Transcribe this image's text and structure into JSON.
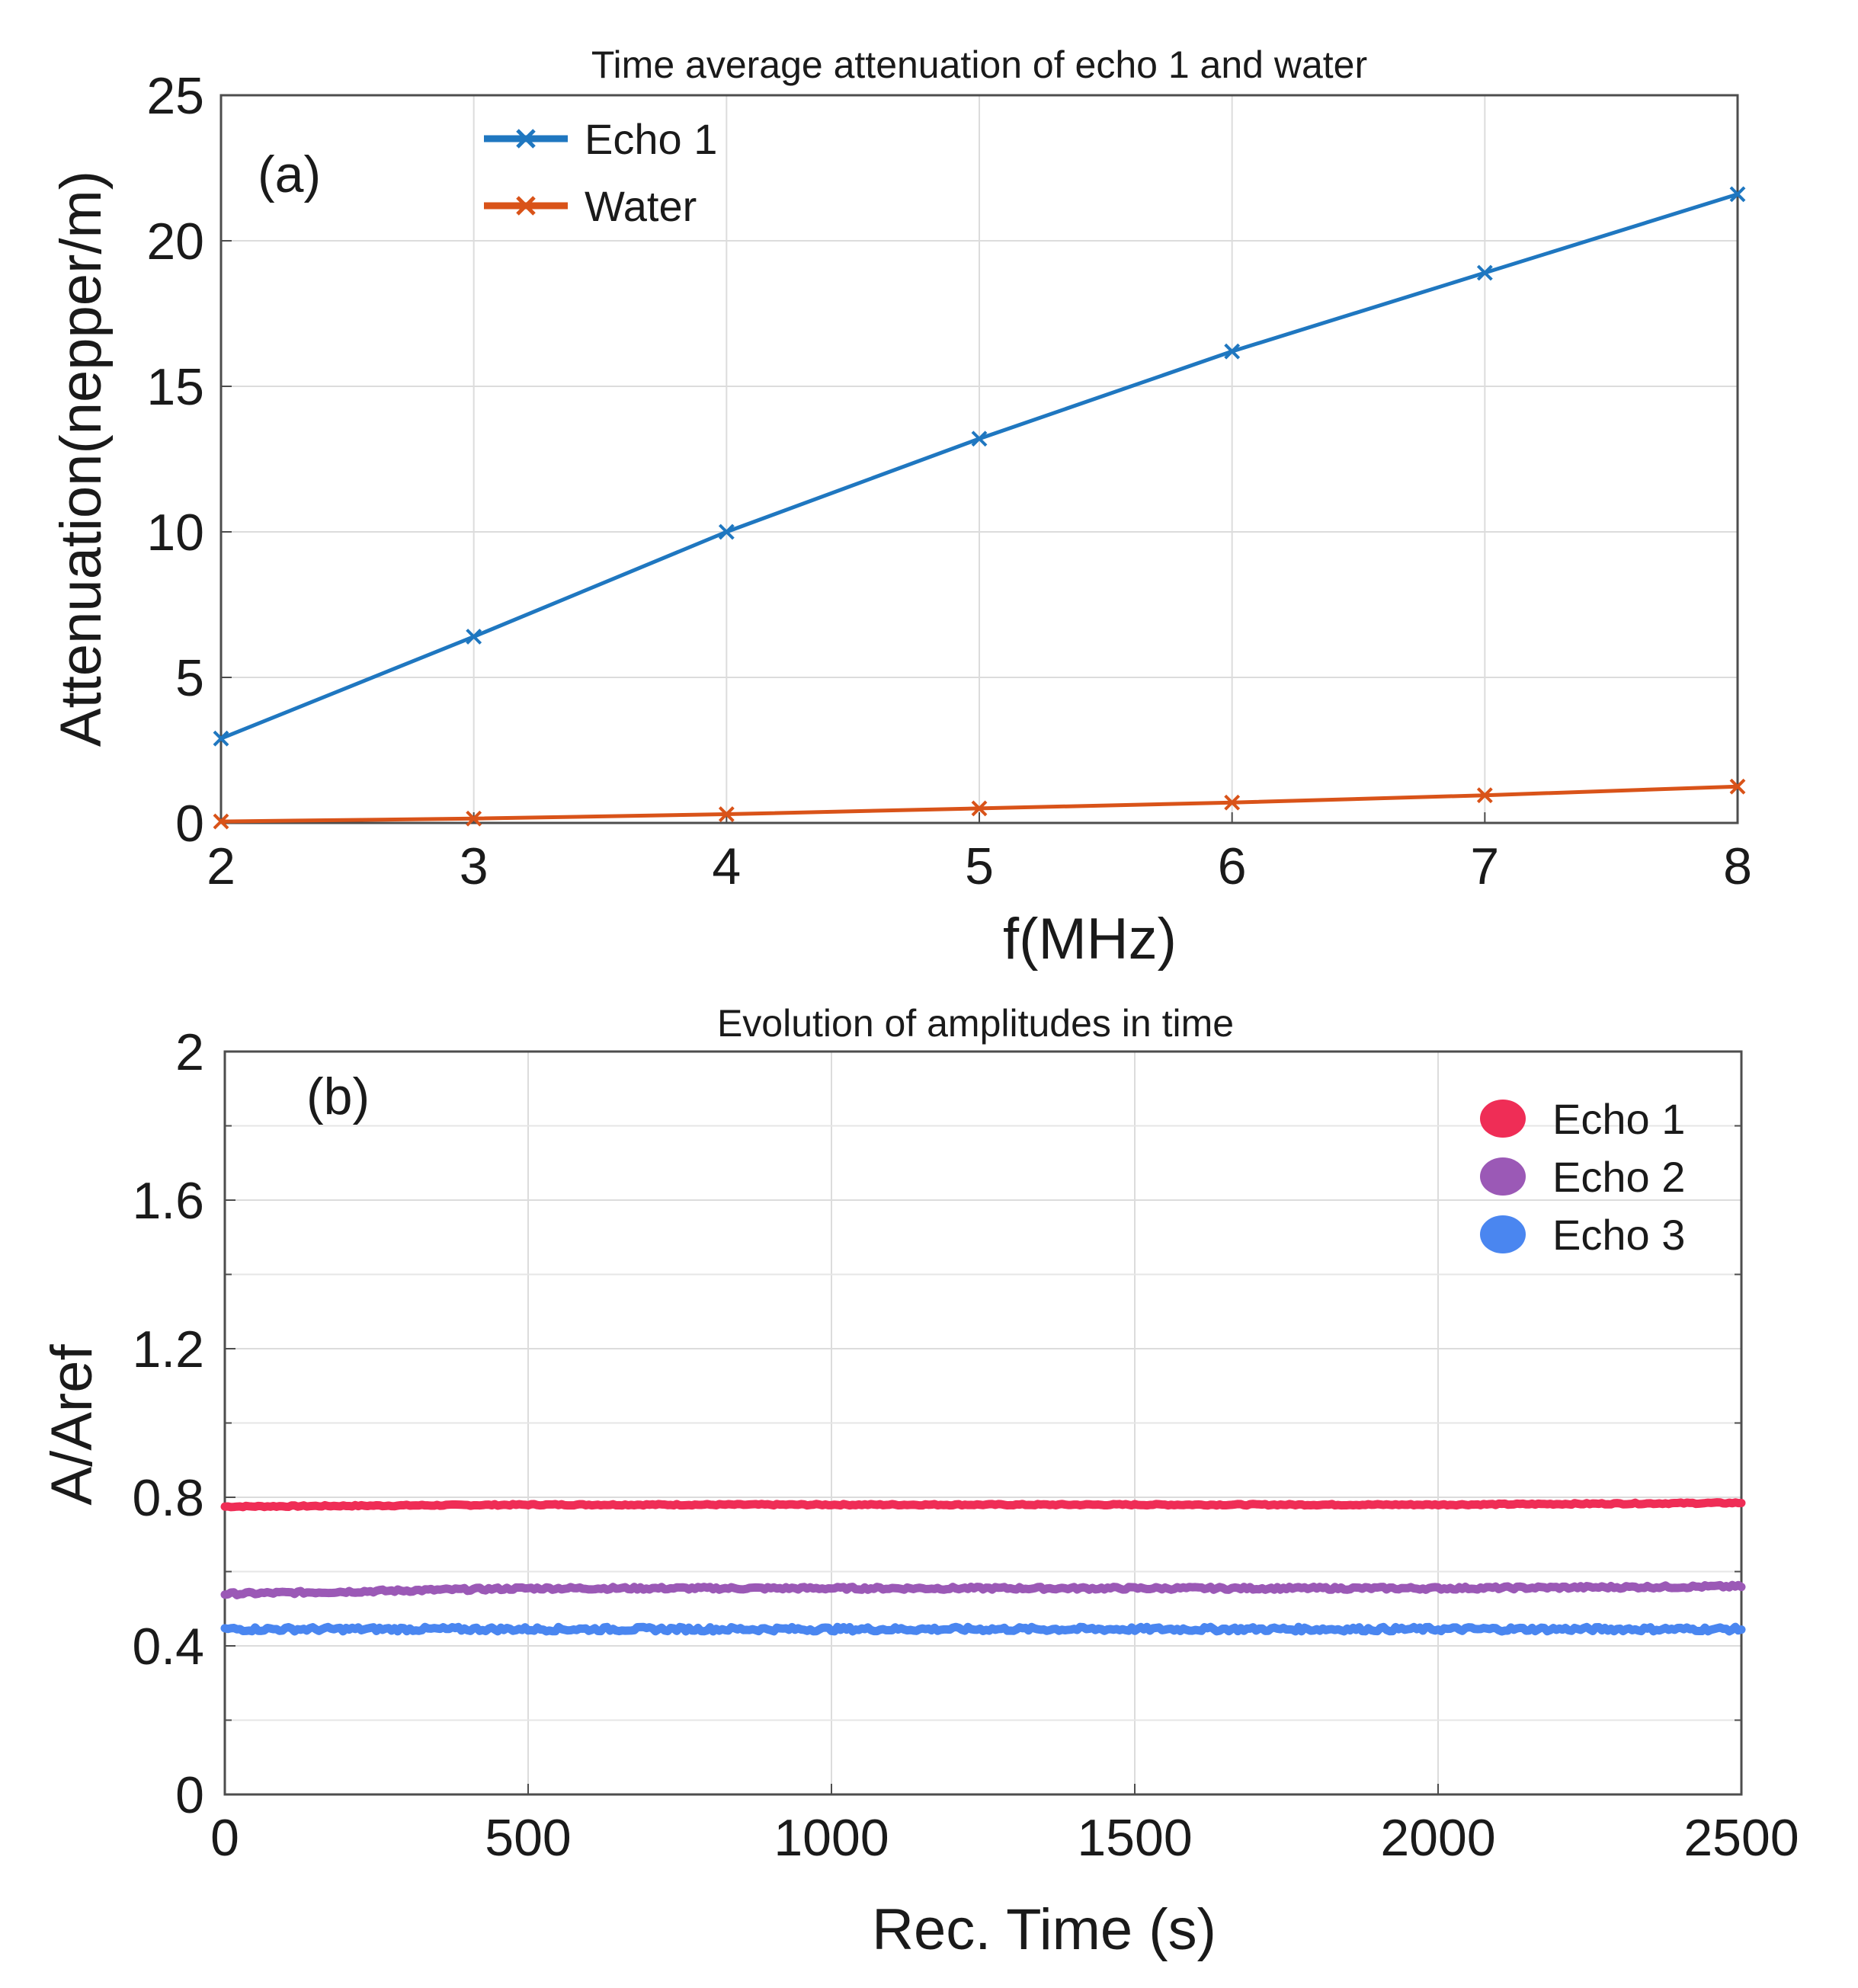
{
  "chart_data": [
    {
      "type": "line",
      "panel_label": "(a)",
      "title": "Time average attenuation of echo 1 and water",
      "xlabel": "f(MHz)",
      "ylabel": "Attenuation(nepper/m)",
      "xlim": [
        2,
        8
      ],
      "ylim": [
        0,
        25
      ],
      "xticks": [
        "2",
        "3",
        "4",
        "5",
        "6",
        "7",
        "8"
      ],
      "yticks": [
        "0",
        "5",
        "10",
        "15",
        "20",
        "25"
      ],
      "grid": true,
      "legend_position": "top-left",
      "x": [
        2,
        3,
        4,
        5,
        6,
        7,
        8
      ],
      "series": [
        {
          "name": "Echo 1",
          "color": "#1f77c0",
          "marker": "x",
          "values": [
            2.9,
            6.4,
            10.0,
            13.2,
            16.2,
            18.9,
            21.6
          ]
        },
        {
          "name": "Water",
          "color": "#d95319",
          "marker": "x",
          "values": [
            0.05,
            0.15,
            0.3,
            0.5,
            0.7,
            0.95,
            1.25
          ]
        }
      ]
    },
    {
      "type": "line",
      "panel_label": "(b)",
      "title": "Evolution of amplitudes in time",
      "xlabel": "Rec. Time (s)",
      "ylabel": "A/Aref",
      "xlim": [
        0,
        2500
      ],
      "ylim": [
        0,
        2
      ],
      "xticks": [
        "0",
        "500",
        "1000",
        "1500",
        "2000",
        "2500"
      ],
      "yticks": [
        "0",
        "0.4",
        "0.8",
        "1.2",
        "1.6",
        "2"
      ],
      "grid": true,
      "legend_position": "top-right",
      "series": [
        {
          "name": "Echo 1",
          "color": "#ef2d56",
          "mean": 0.78,
          "x": [
            0,
            500,
            1000,
            1500,
            2000,
            2500
          ],
          "values": [
            0.775,
            0.78,
            0.78,
            0.78,
            0.78,
            0.785
          ]
        },
        {
          "name": "Echo 2",
          "color": "#9b59b6",
          "mean": 0.555,
          "x": [
            0,
            500,
            1000,
            1500,
            2000,
            2500
          ],
          "values": [
            0.54,
            0.555,
            0.555,
            0.555,
            0.555,
            0.56
          ]
        },
        {
          "name": "Echo 3",
          "color": "#4a86f0",
          "mean": 0.445,
          "x": [
            0,
            500,
            1000,
            1500,
            2000,
            2500
          ],
          "values": [
            0.445,
            0.445,
            0.445,
            0.445,
            0.445,
            0.445
          ]
        }
      ]
    }
  ]
}
